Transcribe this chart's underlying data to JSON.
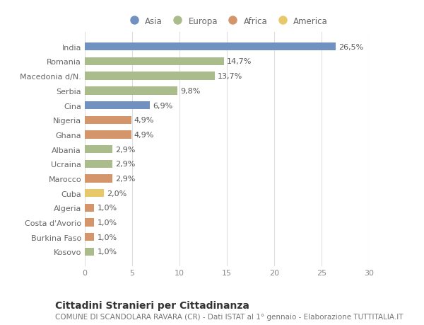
{
  "countries": [
    "India",
    "Romania",
    "Macedonia d/N.",
    "Serbia",
    "Cina",
    "Nigeria",
    "Ghana",
    "Albania",
    "Ucraina",
    "Marocco",
    "Cuba",
    "Algeria",
    "Costa d'Avorio",
    "Burkina Faso",
    "Kosovo"
  ],
  "values": [
    26.5,
    14.7,
    13.7,
    9.8,
    6.9,
    4.9,
    4.9,
    2.9,
    2.9,
    2.9,
    2.0,
    1.0,
    1.0,
    1.0,
    1.0
  ],
  "labels": [
    "26,5%",
    "14,7%",
    "13,7%",
    "9,8%",
    "6,9%",
    "4,9%",
    "4,9%",
    "2,9%",
    "2,9%",
    "2,9%",
    "2,0%",
    "1,0%",
    "1,0%",
    "1,0%",
    "1,0%"
  ],
  "continents": [
    "Asia",
    "Europa",
    "Europa",
    "Europa",
    "Asia",
    "Africa",
    "Africa",
    "Europa",
    "Europa",
    "Africa",
    "America",
    "Africa",
    "Africa",
    "Africa",
    "Europa"
  ],
  "continent_colors": {
    "Asia": "#7191c0",
    "Europa": "#aabb8c",
    "Africa": "#d4956a",
    "America": "#e8c96a"
  },
  "legend_order": [
    "Asia",
    "Europa",
    "Africa",
    "America"
  ],
  "xlim": [
    0,
    30
  ],
  "xticks": [
    0,
    5,
    10,
    15,
    20,
    25,
    30
  ],
  "title_bold": "Cittadini Stranieri per Cittadinanza",
  "subtitle": "COMUNE DI SCANDOLARA RAVARA (CR) - Dati ISTAT al 1° gennaio - Elaborazione TUTTITALIA.IT",
  "bg_color": "#ffffff",
  "grid_color": "#dddddd",
  "bar_height": 0.55,
  "title_fontsize": 10,
  "subtitle_fontsize": 7.5,
  "label_fontsize": 8,
  "tick_fontsize": 8,
  "legend_fontsize": 8.5
}
